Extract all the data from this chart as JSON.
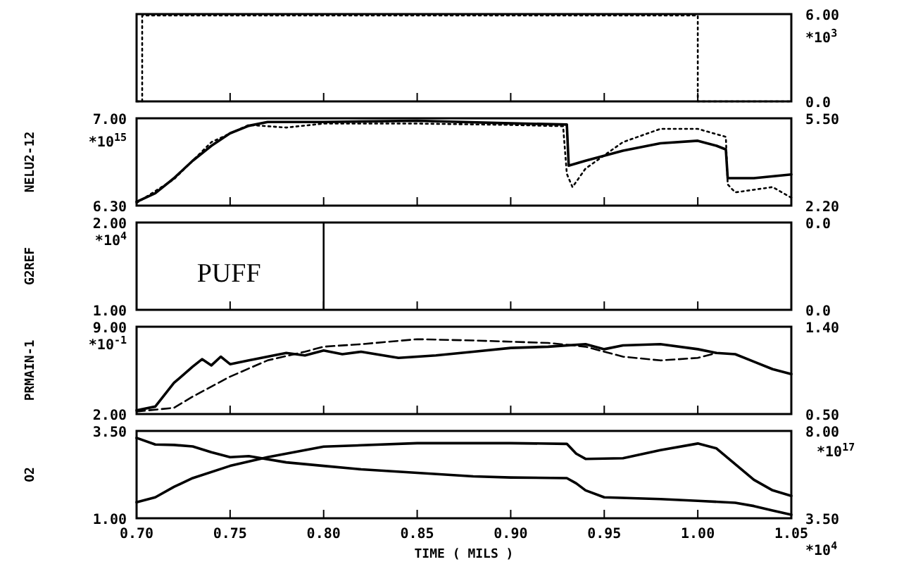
{
  "chart_data": [
    {
      "type": "line",
      "xlim": [
        0.7,
        1.05
      ],
      "xticks": [
        {
          "value": 0.7,
          "label": null
        },
        {
          "value": 0.75,
          "label": null
        },
        {
          "value": 0.8,
          "label": null
        },
        {
          "value": 0.85,
          "label": null
        },
        {
          "value": 0.9,
          "label": null
        },
        {
          "value": 0.95,
          "label": null
        },
        {
          "value": 1.0,
          "label": null
        },
        {
          "value": 1.05,
          "label": null
        }
      ],
      "tick_labels": "y",
      "y2lim": [
        0,
        6
      ],
      "y2ticks": [
        {
          "value": 6,
          "label": "6.00"
        },
        {
          "value": 0,
          "label": "0.0"
        }
      ],
      "annotations": [
        "*10$^{3}$"
      ],
      "series": [
        {
          "color": "#000000",
          "axis": "y2",
          "line_style": "dotted",
          "x": [
            0.7,
            0.703,
            0.703,
            1.0,
            1.0,
            1.05
          ],
          "values": [
            0,
            0,
            5.9,
            5.9,
            0,
            0
          ]
        }
      ]
    },
    {
      "type": "line",
      "xlim": [
        0.7,
        1.05
      ],
      "xticks": [
        {
          "value": 0.7,
          "label": null
        },
        {
          "value": 0.75,
          "label": null
        },
        {
          "value": 0.8,
          "label": null
        },
        {
          "value": 0.85,
          "label": null
        },
        {
          "value": 0.9,
          "label": null
        },
        {
          "value": 0.95,
          "label": null
        },
        {
          "value": 1.0,
          "label": null
        },
        {
          "value": 1.05,
          "label": null
        }
      ],
      "tick_labels": "y",
      "ylabel": "NELU2-12",
      "ylim": [
        6.3,
        7.0
      ],
      "yticks": [
        {
          "value": 7.0,
          "label": "7.00"
        },
        {
          "value": 6.3,
          "label": "6.30"
        }
      ],
      "y2lim": [
        2.2,
        5.5
      ],
      "y2ticks": [
        {
          "value": 5.5,
          "label": "5.50"
        },
        {
          "value": 2.2,
          "label": "2.20"
        }
      ],
      "annotations": [
        "*10$^{15}$"
      ],
      "series": [
        {
          "color": "#000000",
          "line_style": "solid",
          "x": [
            0.7,
            0.71,
            0.72,
            0.73,
            0.74,
            0.75,
            0.76,
            0.77,
            0.8,
            0.85,
            0.9,
            0.93,
            0.931,
            0.94,
            0.96,
            0.98,
            1.0,
            1.01,
            1.015,
            1.016,
            1.03,
            1.05
          ],
          "values": [
            6.33,
            6.4,
            6.52,
            6.66,
            6.78,
            6.88,
            6.94,
            6.97,
            6.97,
            6.98,
            6.96,
            6.95,
            6.62,
            6.66,
            6.74,
            6.8,
            6.82,
            6.78,
            6.75,
            6.52,
            6.52,
            6.55
          ]
        },
        {
          "color": "#000000",
          "axis": "y2",
          "line_style": "dotted",
          "x": [
            0.7,
            0.72,
            0.74,
            0.76,
            0.78,
            0.8,
            0.85,
            0.9,
            0.928,
            0.93,
            0.933,
            0.94,
            0.96,
            0.98,
            1.0,
            1.015,
            1.016,
            1.02,
            1.04,
            1.05
          ],
          "values": [
            2.3,
            3.2,
            4.6,
            5.25,
            5.15,
            5.3,
            5.3,
            5.25,
            5.2,
            3.4,
            2.9,
            3.6,
            4.6,
            5.1,
            5.1,
            4.8,
            3.0,
            2.7,
            2.9,
            2.5
          ]
        }
      ]
    },
    {
      "type": "line",
      "xlim": [
        0.7,
        1.05
      ],
      "xticks": [
        {
          "value": 0.7,
          "label": null
        },
        {
          "value": 0.75,
          "label": null
        },
        {
          "value": 0.8,
          "label": null
        },
        {
          "value": 0.85,
          "label": null
        },
        {
          "value": 0.9,
          "label": null
        },
        {
          "value": 0.95,
          "label": null
        },
        {
          "value": 1.0,
          "label": null
        },
        {
          "value": 1.05,
          "label": null
        }
      ],
      "tick_labels": "y",
      "ylabel": "G2REF",
      "ylim": [
        1.0,
        2.0
      ],
      "yticks": [
        {
          "value": 2.0,
          "label": "2.00"
        },
        {
          "value": 1.0,
          "label": "1.00"
        }
      ],
      "annotations": [
        "*10$^{4}$",
        "0.0",
        "0.0"
      ],
      "ref_lines": [
        {
          "axis": "x",
          "value": 0.8,
          "label": "PUFF"
        }
      ]
    },
    {
      "type": "line",
      "xlim": [
        0.7,
        1.05
      ],
      "xticks": [
        {
          "value": 0.7,
          "label": null
        },
        {
          "value": 0.75,
          "label": null
        },
        {
          "value": 0.8,
          "label": null
        },
        {
          "value": 0.85,
          "label": null
        },
        {
          "value": 0.9,
          "label": null
        },
        {
          "value": 0.95,
          "label": null
        },
        {
          "value": 1.0,
          "label": null
        },
        {
          "value": 1.05,
          "label": null
        }
      ],
      "tick_labels": "y",
      "ylabel": "PRMAIN-1",
      "ylim": [
        2.0,
        9.0
      ],
      "yticks": [
        {
          "value": 9.0,
          "label": "9.00"
        },
        {
          "value": 2.0,
          "label": "2.00"
        }
      ],
      "y2lim": [
        0.5,
        1.4
      ],
      "y2ticks": [
        {
          "value": 1.4,
          "label": "1.40"
        },
        {
          "value": 0.5,
          "label": "0.50"
        }
      ],
      "annotations": [
        "*10$^{-1}$"
      ],
      "series": [
        {
          "color": "#000000",
          "line_style": "solid",
          "x": [
            0.7,
            0.71,
            0.72,
            0.73,
            0.735,
            0.74,
            0.745,
            0.75,
            0.76,
            0.77,
            0.78,
            0.79,
            0.8,
            0.81,
            0.82,
            0.84,
            0.86,
            0.88,
            0.9,
            0.92,
            0.94,
            0.95,
            0.96,
            0.98,
            1.0,
            1.01,
            1.02,
            1.03,
            1.04,
            1.05
          ],
          "values": [
            2.3,
            2.6,
            4.5,
            5.8,
            6.4,
            5.9,
            6.6,
            6.0,
            6.3,
            6.6,
            6.9,
            6.7,
            7.1,
            6.8,
            7.0,
            6.5,
            6.7,
            7.0,
            7.3,
            7.4,
            7.6,
            7.2,
            7.5,
            7.6,
            7.2,
            6.9,
            6.8,
            6.2,
            5.6,
            5.2
          ]
        },
        {
          "color": "#000000",
          "line_style": "dashed",
          "x": [
            0.7,
            0.72,
            0.73,
            0.75,
            0.77,
            0.79,
            0.8,
            0.82,
            0.85,
            0.88,
            0.9,
            0.92,
            0.94,
            0.96,
            0.98,
            1.0,
            1.01
          ],
          "values": [
            2.2,
            2.5,
            3.4,
            5.0,
            6.3,
            7.0,
            7.4,
            7.6,
            8.0,
            7.9,
            7.8,
            7.7,
            7.4,
            6.6,
            6.3,
            6.5,
            6.9
          ]
        }
      ]
    },
    {
      "type": "line",
      "xlim": [
        0.7,
        1.05
      ],
      "xticks": [
        {
          "value": 0.7,
          "label": "0.70"
        },
        {
          "value": 0.75,
          "label": "0.75"
        },
        {
          "value": 0.8,
          "label": "0.80"
        },
        {
          "value": 0.85,
          "label": "0.85"
        },
        {
          "value": 0.9,
          "label": "0.90"
        },
        {
          "value": 0.95,
          "label": "0.95"
        },
        {
          "value": 1.0,
          "label": "1.00"
        },
        {
          "value": 1.05,
          "label": "1.05"
        }
      ],
      "xlabel": "TIME ( MILS )",
      "ylabel": "O2",
      "ylim": [
        1.0,
        3.5
      ],
      "yticks": [
        {
          "value": 3.5,
          "label": "3.50"
        },
        {
          "value": 1.0,
          "label": "1.00"
        }
      ],
      "y2lim": [
        3.5,
        8.0
      ],
      "y2ticks": [
        {
          "value": 8.0,
          "label": "8.00"
        },
        {
          "value": 3.5,
          "label": "3.50"
        }
      ],
      "annotations": [
        "*10$^{17}$",
        "*10$^{4}$"
      ],
      "series": [
        {
          "color": "#000000",
          "line_style": "solid",
          "x": [
            0.7,
            0.71,
            0.72,
            0.73,
            0.75,
            0.77,
            0.8,
            0.85,
            0.9,
            0.93,
            0.935,
            0.94,
            0.96,
            0.98,
            1.0,
            1.01,
            1.02,
            1.03,
            1.04,
            1.05
          ],
          "values": [
            1.46,
            1.6,
            1.9,
            2.15,
            2.5,
            2.75,
            3.05,
            3.15,
            3.15,
            3.13,
            2.85,
            2.7,
            2.72,
            2.95,
            3.14,
            3.0,
            2.55,
            2.1,
            1.8,
            1.64
          ]
        },
        {
          "color": "#000000",
          "axis": "y2",
          "line_style": "solid",
          "x": [
            0.7,
            0.71,
            0.72,
            0.73,
            0.74,
            0.75,
            0.76,
            0.78,
            0.8,
            0.82,
            0.85,
            0.88,
            0.9,
            0.93,
            0.935,
            0.94,
            0.95,
            0.98,
            1.0,
            1.02,
            1.03,
            1.04,
            1.05
          ],
          "values": [
            7.64,
            7.3,
            7.28,
            7.2,
            6.9,
            6.65,
            6.7,
            6.38,
            6.2,
            6.02,
            5.84,
            5.66,
            5.6,
            5.57,
            5.3,
            4.94,
            4.58,
            4.49,
            4.4,
            4.3,
            4.13,
            3.9,
            3.68
          ]
        }
      ]
    }
  ]
}
